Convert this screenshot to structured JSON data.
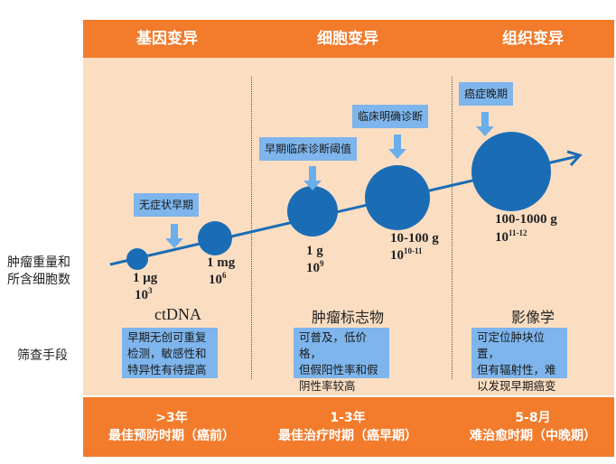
{
  "header": {
    "columns": [
      "基因变异",
      "细胞变异",
      "组织变异"
    ]
  },
  "side_labels": {
    "weight": [
      "肿瘤重量和",
      "所含细胞数"
    ],
    "screening": "筛查手段"
  },
  "stages": [
    {
      "label": "无症状早期"
    },
    {
      "label": "早期临床诊断阈值"
    },
    {
      "label": "临床明确诊断"
    },
    {
      "label": "癌症晚期"
    }
  ],
  "tumors": [
    {
      "weight": "1 μg",
      "cells_base": "10",
      "cells_exp": "3"
    },
    {
      "weight": "1 mg",
      "cells_base": "10",
      "cells_exp": "6"
    },
    {
      "weight": "1 g",
      "cells_base": "10",
      "cells_exp": "9"
    },
    {
      "weight": "10-100 g",
      "cells_base": "10",
      "cells_exp": "10-11"
    },
    {
      "weight": "100-1000 g",
      "cells_base": "10",
      "cells_exp": "11-12"
    }
  ],
  "methods": [
    {
      "title": "ctDNA",
      "desc": [
        "早期无创可重复",
        "检测，敏感性和",
        "特异性有待提高"
      ]
    },
    {
      "title": "肿瘤标志物",
      "desc": [
        "可普及，低价格，",
        "但假阳性率和假",
        "阴性率较高"
      ]
    },
    {
      "title": "影像学",
      "desc": [
        "可定位肿块位置，",
        "但有辐射性，难",
        "以发现早期癌变"
      ]
    }
  ],
  "footer": [
    {
      "time": ">3年",
      "period": "最佳预防时期（癌前）"
    },
    {
      "time": "1-3年",
      "period": "最佳治疗时期（癌早期）"
    },
    {
      "time": "5-8月",
      "period": "难治愈时期（中晚期）"
    }
  ],
  "colors": {
    "orange": "#F27B2C",
    "peach": "#FBDEC2",
    "tumor_blue": "#1A6DB5",
    "label_blue": "#7EB5EC",
    "arrow_blue": "#6AAEEA"
  }
}
